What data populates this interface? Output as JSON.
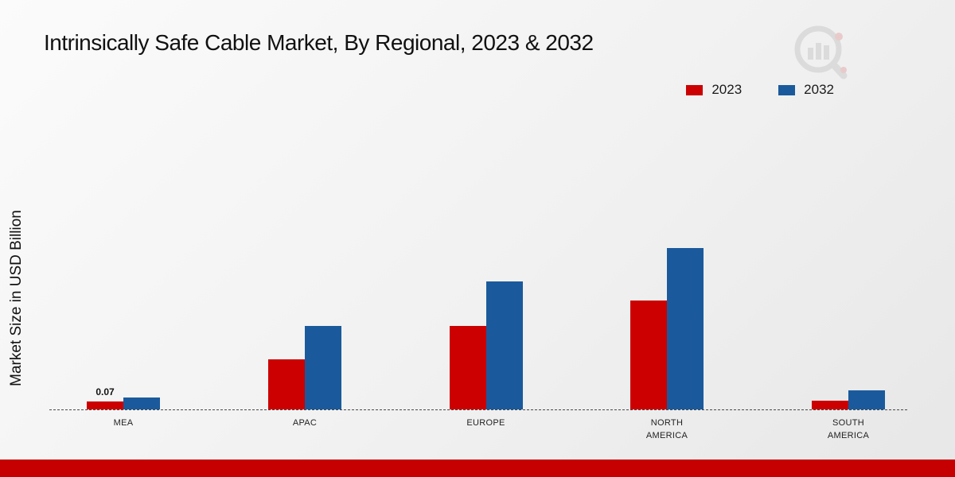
{
  "page": {
    "title": "Intrinsically Safe Cable Market, By Regional, 2023 & 2032",
    "y_axis_label": "Market Size in USD Billion"
  },
  "colors": {
    "series_2023": "#cc0000",
    "series_2032": "#1a5a9c",
    "footer_stripe": "#c60000",
    "logo_gray": "#d9d9d9",
    "logo_accent": "#e9c7c7"
  },
  "legend": [
    {
      "label": "2023",
      "color": "#cc0000"
    },
    {
      "label": "2032",
      "color": "#1a5a9c"
    }
  ],
  "chart_data": {
    "type": "bar",
    "title": "Intrinsically Safe Cable Market, By Regional, 2023 & 2032",
    "ylabel": "Market Size in USD Billion",
    "categories": [
      "MEA",
      "APAC",
      "EUROPE",
      "NORTH AMERICA",
      "SOUTH AMERICA"
    ],
    "series": [
      {
        "name": "2023",
        "color": "#cc0000",
        "values": [
          0.07,
          0.45,
          0.75,
          0.98,
          0.08
        ]
      },
      {
        "name": "2032",
        "color": "#1a5a9c",
        "values": [
          0.11,
          0.75,
          1.15,
          1.45,
          0.17
        ]
      }
    ],
    "ylim": [
      0,
      1.6
    ],
    "grid": false,
    "legend_position": "top-right",
    "baseline_style": "dashed",
    "data_labels": [
      {
        "series": "2023",
        "category": "MEA",
        "text": "0.07"
      }
    ]
  }
}
